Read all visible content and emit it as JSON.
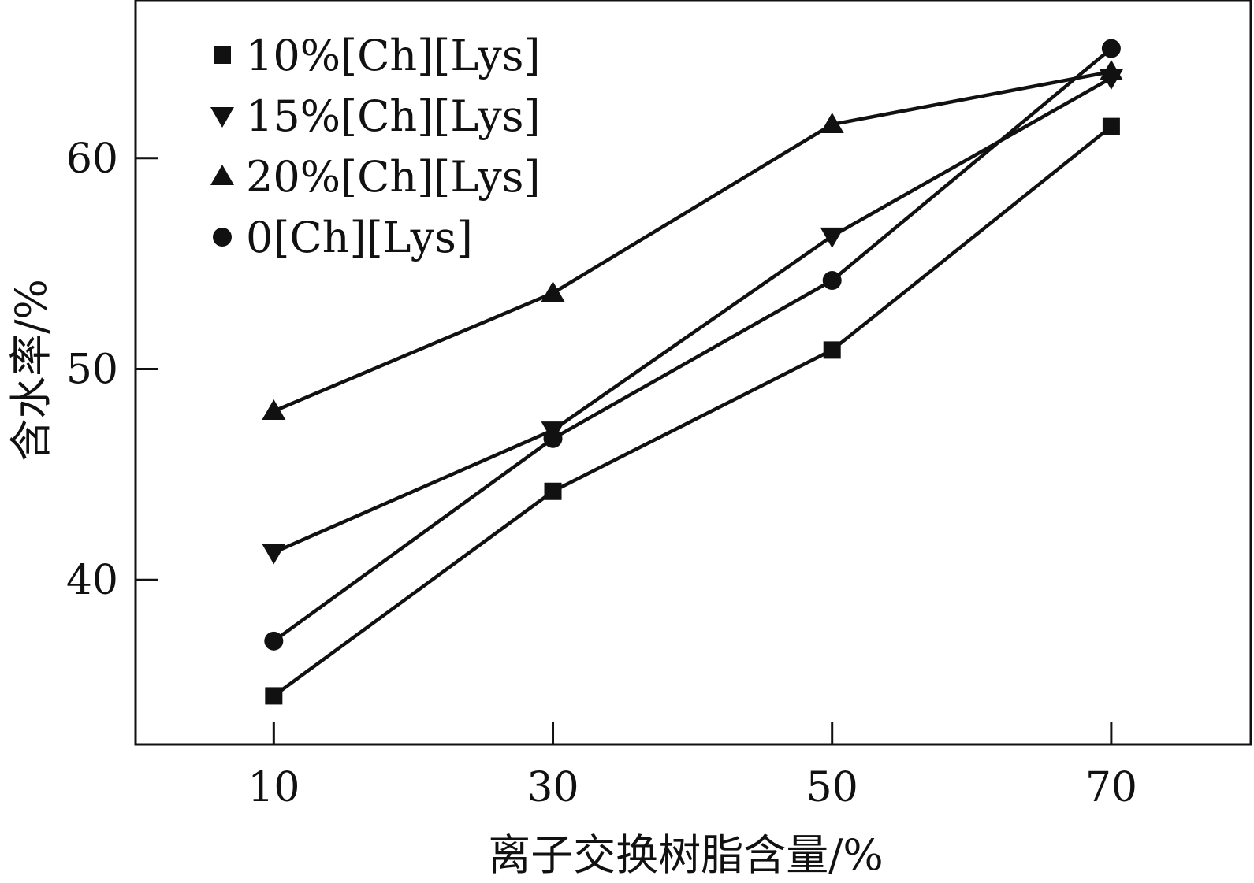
{
  "chart_data": {
    "type": "line",
    "title": "",
    "xlabel": "离子交换树脂含量/%",
    "ylabel": "含水率/%",
    "x": [
      10,
      30,
      50,
      70
    ],
    "x_ticks": [
      "10",
      "30",
      "50",
      "70"
    ],
    "y_ticks": [
      "40",
      "50",
      "60"
    ],
    "xlim": [
      0.1,
      80
    ],
    "ylim": [
      32.2,
      67.5
    ],
    "grid": false,
    "legend_position": "top-left",
    "series": [
      {
        "name": "10%[Ch][Lys]",
        "marker": "square",
        "values": [
          34.5,
          44.2,
          50.9,
          61.5
        ]
      },
      {
        "name": "15%[Ch][Lys]",
        "marker": "triangle-down",
        "values": [
          41.3,
          47.1,
          56.3,
          63.8
        ]
      },
      {
        "name": "20%[Ch][Lys]",
        "marker": "triangle-up",
        "values": [
          48.0,
          53.6,
          61.6,
          64.1
        ]
      },
      {
        "name": "0[Ch][Lys]",
        "marker": "circle",
        "values": [
          37.1,
          46.7,
          54.2,
          65.2
        ]
      }
    ],
    "colors": {
      "line": "#111111",
      "marker": "#111111",
      "axis": "#111111"
    }
  }
}
